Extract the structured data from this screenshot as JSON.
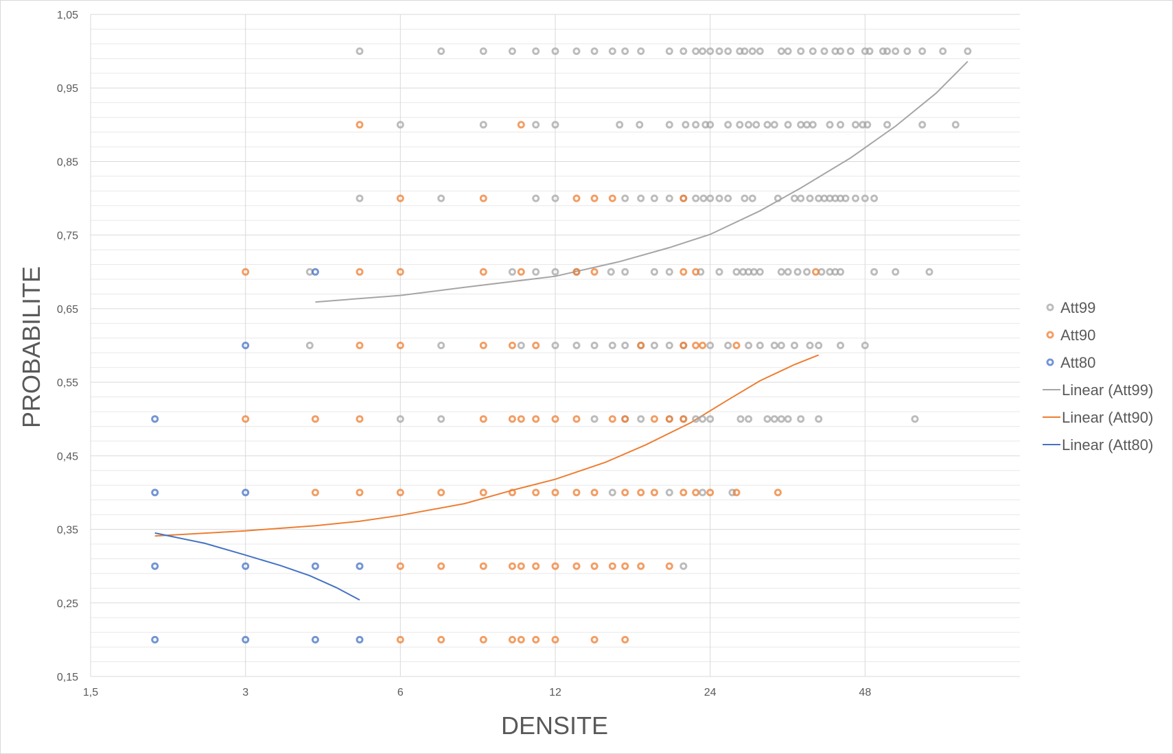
{
  "chart_data": {
    "type": "scatter",
    "title": "",
    "xlabel": "DENSITE",
    "ylabel": "PROBABILITE",
    "x_scale": "log2",
    "xlim": [
      1.5,
      96
    ],
    "ylim": [
      0.15,
      1.05
    ],
    "x_ticks": [
      "1,5",
      "3",
      "6",
      "12",
      "24",
      "48"
    ],
    "y_ticks": [
      "1,05",
      "0,95",
      "0,85",
      "0,75",
      "0,65",
      "0,55",
      "0,45",
      "0,35",
      "0,25",
      "0,15"
    ],
    "grid": "horizontal minor and major, vertical major",
    "legend_position": "right",
    "series": [
      {
        "name": "Att99",
        "color": "#a5a5a5",
        "points": [
          [
            5,
            1
          ],
          [
            7.2,
            1
          ],
          [
            8.7,
            1
          ],
          [
            9.9,
            1
          ],
          [
            11,
            1
          ],
          [
            12,
            1
          ],
          [
            13.2,
            1
          ],
          [
            14.3,
            1
          ],
          [
            15.5,
            1
          ],
          [
            16.4,
            1
          ],
          [
            17.6,
            1
          ],
          [
            20,
            1
          ],
          [
            21.3,
            1
          ],
          [
            22.5,
            1
          ],
          [
            23.2,
            1
          ],
          [
            24,
            1
          ],
          [
            25,
            1
          ],
          [
            26,
            1
          ],
          [
            27.4,
            1
          ],
          [
            28,
            1
          ],
          [
            29,
            1
          ],
          [
            30,
            1
          ],
          [
            33,
            1
          ],
          [
            34,
            1
          ],
          [
            36,
            1
          ],
          [
            38,
            1
          ],
          [
            40,
            1
          ],
          [
            42,
            1
          ],
          [
            43,
            1
          ],
          [
            45,
            1
          ],
          [
            48,
            1
          ],
          [
            49,
            1
          ],
          [
            52,
            1
          ],
          [
            53,
            1
          ],
          [
            55,
            1
          ],
          [
            58,
            1
          ],
          [
            62,
            1
          ],
          [
            68,
            1
          ],
          [
            76,
            1
          ],
          [
            6,
            0.9
          ],
          [
            8.7,
            0.9
          ],
          [
            11,
            0.9
          ],
          [
            12,
            0.9
          ],
          [
            16,
            0.9
          ],
          [
            17.5,
            0.9
          ],
          [
            20,
            0.9
          ],
          [
            21.5,
            0.9
          ],
          [
            22.5,
            0.9
          ],
          [
            23.5,
            0.9
          ],
          [
            24,
            0.9
          ],
          [
            26,
            0.9
          ],
          [
            27.4,
            0.9
          ],
          [
            28.5,
            0.9
          ],
          [
            29.5,
            0.9
          ],
          [
            31,
            0.9
          ],
          [
            32,
            0.9
          ],
          [
            34,
            0.9
          ],
          [
            36,
            0.9
          ],
          [
            37,
            0.9
          ],
          [
            38,
            0.9
          ],
          [
            41,
            0.9
          ],
          [
            43,
            0.9
          ],
          [
            46,
            0.9
          ],
          [
            47.5,
            0.9
          ],
          [
            48.5,
            0.9
          ],
          [
            53,
            0.9
          ],
          [
            62,
            0.9
          ],
          [
            72,
            0.9
          ],
          [
            5,
            0.8
          ],
          [
            7.2,
            0.8
          ],
          [
            11,
            0.8
          ],
          [
            12,
            0.8
          ],
          [
            16.4,
            0.8
          ],
          [
            17.6,
            0.8
          ],
          [
            18.7,
            0.8
          ],
          [
            20,
            0.8
          ],
          [
            21.3,
            0.8
          ],
          [
            22.5,
            0.8
          ],
          [
            23.3,
            0.8
          ],
          [
            24,
            0.8
          ],
          [
            25,
            0.8
          ],
          [
            26,
            0.8
          ],
          [
            28,
            0.8
          ],
          [
            29,
            0.8
          ],
          [
            32.5,
            0.8
          ],
          [
            35,
            0.8
          ],
          [
            36,
            0.8
          ],
          [
            37.5,
            0.8
          ],
          [
            39,
            0.8
          ],
          [
            40,
            0.8
          ],
          [
            41,
            0.8
          ],
          [
            42,
            0.8
          ],
          [
            43,
            0.8
          ],
          [
            44,
            0.8
          ],
          [
            46,
            0.8
          ],
          [
            48,
            0.8
          ],
          [
            50,
            0.8
          ],
          [
            4,
            0.7
          ],
          [
            9.9,
            0.7
          ],
          [
            11,
            0.7
          ],
          [
            12,
            0.7
          ],
          [
            13.2,
            0.7
          ],
          [
            15.4,
            0.7
          ],
          [
            16.4,
            0.7
          ],
          [
            18.7,
            0.7
          ],
          [
            20,
            0.7
          ],
          [
            23,
            0.7
          ],
          [
            25,
            0.7
          ],
          [
            27,
            0.7
          ],
          [
            27.8,
            0.7
          ],
          [
            28.5,
            0.7
          ],
          [
            29.2,
            0.7
          ],
          [
            30,
            0.7
          ],
          [
            33,
            0.7
          ],
          [
            34,
            0.7
          ],
          [
            35.5,
            0.7
          ],
          [
            37,
            0.7
          ],
          [
            39.5,
            0.7
          ],
          [
            41,
            0.7
          ],
          [
            42,
            0.7
          ],
          [
            43,
            0.7
          ],
          [
            50,
            0.7
          ],
          [
            55,
            0.7
          ],
          [
            64,
            0.7
          ],
          [
            4,
            0.6
          ],
          [
            7.2,
            0.6
          ],
          [
            10.3,
            0.6
          ],
          [
            12,
            0.6
          ],
          [
            13.2,
            0.6
          ],
          [
            14.3,
            0.6
          ],
          [
            15.5,
            0.6
          ],
          [
            16.4,
            0.6
          ],
          [
            17.6,
            0.6
          ],
          [
            18.7,
            0.6
          ],
          [
            20,
            0.6
          ],
          [
            21.3,
            0.6
          ],
          [
            24,
            0.6
          ],
          [
            26,
            0.6
          ],
          [
            28.5,
            0.6
          ],
          [
            30,
            0.6
          ],
          [
            32,
            0.6
          ],
          [
            33,
            0.6
          ],
          [
            35,
            0.6
          ],
          [
            37.5,
            0.6
          ],
          [
            39,
            0.6
          ],
          [
            43,
            0.6
          ],
          [
            48,
            0.6
          ],
          [
            6,
            0.5
          ],
          [
            7.2,
            0.5
          ],
          [
            14.3,
            0.5
          ],
          [
            16.4,
            0.5
          ],
          [
            17.6,
            0.5
          ],
          [
            20,
            0.5
          ],
          [
            21.3,
            0.5
          ],
          [
            22.5,
            0.5
          ],
          [
            23.2,
            0.5
          ],
          [
            24,
            0.5
          ],
          [
            27.5,
            0.5
          ],
          [
            28.5,
            0.5
          ],
          [
            31,
            0.5
          ],
          [
            32,
            0.5
          ],
          [
            33,
            0.5
          ],
          [
            34,
            0.5
          ],
          [
            36,
            0.5
          ],
          [
            39,
            0.5
          ],
          [
            60,
            0.5
          ],
          [
            15.5,
            0.4
          ],
          [
            20,
            0.4
          ],
          [
            23.2,
            0.4
          ],
          [
            26.5,
            0.4
          ],
          [
            21.3,
            0.3
          ]
        ]
      },
      {
        "name": "Att90",
        "color": "#ed7d31",
        "points": [
          [
            5,
            0.9
          ],
          [
            10.3,
            0.9
          ],
          [
            6,
            0.8
          ],
          [
            8.7,
            0.8
          ],
          [
            13.2,
            0.8
          ],
          [
            14.3,
            0.8
          ],
          [
            15.5,
            0.8
          ],
          [
            21.3,
            0.8
          ],
          [
            3,
            0.7
          ],
          [
            5,
            0.7
          ],
          [
            6,
            0.7
          ],
          [
            8.7,
            0.7
          ],
          [
            10.3,
            0.7
          ],
          [
            13.2,
            0.7
          ],
          [
            14.3,
            0.7
          ],
          [
            21.3,
            0.7
          ],
          [
            22.5,
            0.7
          ],
          [
            38.5,
            0.7
          ],
          [
            5,
            0.6
          ],
          [
            6,
            0.6
          ],
          [
            8.7,
            0.6
          ],
          [
            9.9,
            0.6
          ],
          [
            11,
            0.6
          ],
          [
            17.6,
            0.6
          ],
          [
            21.3,
            0.6
          ],
          [
            22.5,
            0.6
          ],
          [
            23.2,
            0.6
          ],
          [
            27,
            0.6
          ],
          [
            3,
            0.5
          ],
          [
            4.1,
            0.5
          ],
          [
            5,
            0.5
          ],
          [
            8.7,
            0.5
          ],
          [
            9.9,
            0.5
          ],
          [
            10.3,
            0.5
          ],
          [
            11,
            0.5
          ],
          [
            12,
            0.5
          ],
          [
            13.2,
            0.5
          ],
          [
            15.5,
            0.5
          ],
          [
            16.4,
            0.5
          ],
          [
            18.7,
            0.5
          ],
          [
            20,
            0.5
          ],
          [
            21.3,
            0.5
          ],
          [
            4.1,
            0.4
          ],
          [
            5,
            0.4
          ],
          [
            6,
            0.4
          ],
          [
            7.2,
            0.4
          ],
          [
            8.7,
            0.4
          ],
          [
            9.9,
            0.4
          ],
          [
            11,
            0.4
          ],
          [
            12,
            0.4
          ],
          [
            13.2,
            0.4
          ],
          [
            14.3,
            0.4
          ],
          [
            16.4,
            0.4
          ],
          [
            17.6,
            0.4
          ],
          [
            18.7,
            0.4
          ],
          [
            21.3,
            0.4
          ],
          [
            22.5,
            0.4
          ],
          [
            24,
            0.4
          ],
          [
            27,
            0.4
          ],
          [
            32.5,
            0.4
          ],
          [
            6,
            0.3
          ],
          [
            7.2,
            0.3
          ],
          [
            8.7,
            0.3
          ],
          [
            9.9,
            0.3
          ],
          [
            10.3,
            0.3
          ],
          [
            11,
            0.3
          ],
          [
            12,
            0.3
          ],
          [
            13.2,
            0.3
          ],
          [
            14.3,
            0.3
          ],
          [
            15.5,
            0.3
          ],
          [
            16.4,
            0.3
          ],
          [
            17.6,
            0.3
          ],
          [
            20,
            0.3
          ],
          [
            6,
            0.2
          ],
          [
            7.2,
            0.2
          ],
          [
            8.7,
            0.2
          ],
          [
            9.9,
            0.2
          ],
          [
            10.3,
            0.2
          ],
          [
            11,
            0.2
          ],
          [
            12,
            0.2
          ],
          [
            14.3,
            0.2
          ],
          [
            16.4,
            0.2
          ]
        ]
      },
      {
        "name": "Att80",
        "color": "#4472c4",
        "points": [
          [
            4.1,
            0.7
          ],
          [
            3,
            0.6
          ],
          [
            2,
            0.5
          ],
          [
            2,
            0.4
          ],
          [
            3,
            0.4
          ],
          [
            2,
            0.3
          ],
          [
            3,
            0.3
          ],
          [
            4.1,
            0.3
          ],
          [
            5,
            0.3
          ],
          [
            2,
            0.2
          ],
          [
            3,
            0.2
          ],
          [
            4.1,
            0.2
          ],
          [
            5,
            0.2
          ]
        ]
      }
    ],
    "trendlines": [
      {
        "name": "Linear (Att99)",
        "color": "#a5a5a5",
        "points": [
          [
            4.1,
            0.659
          ],
          [
            6,
            0.668
          ],
          [
            8,
            0.679
          ],
          [
            12,
            0.694
          ],
          [
            16,
            0.714
          ],
          [
            20,
            0.733
          ],
          [
            24,
            0.751
          ],
          [
            30,
            0.783
          ],
          [
            36,
            0.814
          ],
          [
            45,
            0.855
          ],
          [
            55,
            0.898
          ],
          [
            66,
            0.943
          ],
          [
            76,
            0.986
          ]
        ]
      },
      {
        "name": "Linear (Att90)",
        "color": "#ed7d31",
        "points": [
          [
            2,
            0.341
          ],
          [
            3,
            0.348
          ],
          [
            4.1,
            0.355
          ],
          [
            5,
            0.361
          ],
          [
            6,
            0.369
          ],
          [
            8,
            0.385
          ],
          [
            10,
            0.404
          ],
          [
            12,
            0.418
          ],
          [
            15,
            0.441
          ],
          [
            18,
            0.465
          ],
          [
            22,
            0.495
          ],
          [
            26,
            0.526
          ],
          [
            30,
            0.552
          ],
          [
            35,
            0.574
          ],
          [
            39,
            0.587
          ]
        ]
      },
      {
        "name": "Linear (Att80)",
        "color": "#4472c4",
        "points": [
          [
            2,
            0.345
          ],
          [
            2.5,
            0.331
          ],
          [
            3,
            0.315
          ],
          [
            3.5,
            0.301
          ],
          [
            4,
            0.287
          ],
          [
            4.5,
            0.271
          ],
          [
            5,
            0.254
          ]
        ]
      }
    ]
  }
}
